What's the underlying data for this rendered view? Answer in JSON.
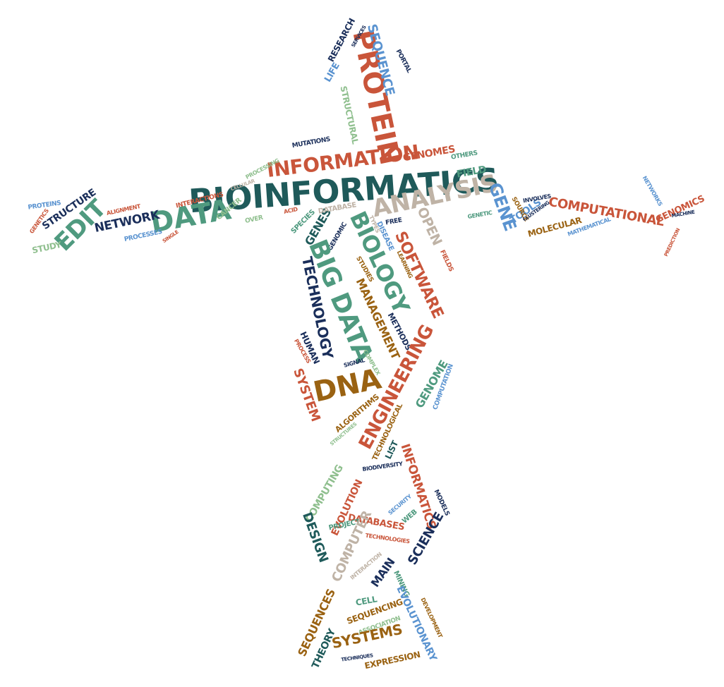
{
  "palette": {
    "red": "#c9553a",
    "teal": "#1f5a5a",
    "green": "#4f9a7f",
    "navy": "#1a2e5a",
    "brown": "#9a6212",
    "beige": "#bfb3a6",
    "sky": "#5a93d0",
    "sage": "#8fbf8e"
  },
  "words": [
    {
      "text": "BIOINFORMATICS",
      "color": "teal"
    },
    {
      "text": "PROTEIN",
      "color": "red"
    },
    {
      "text": "SEQUENCE",
      "color": "sky"
    },
    {
      "text": "RESEARCH",
      "color": "navy"
    },
    {
      "text": "LIFE",
      "color": "sky"
    },
    {
      "text": "SERVICES",
      "color": "navy"
    },
    {
      "text": "PORTAL",
      "color": "navy"
    },
    {
      "text": "STRUCTURAL",
      "color": "sage"
    },
    {
      "text": "INFORMATION",
      "color": "red"
    },
    {
      "text": "MUTATIONS",
      "color": "navy"
    },
    {
      "text": "GENOMES",
      "color": "red"
    },
    {
      "text": "OTHERS",
      "color": "green"
    },
    {
      "text": "FIELD",
      "color": "green"
    },
    {
      "text": "PROCESSING",
      "color": "sage"
    },
    {
      "text": "CELLULAR",
      "color": "beige"
    },
    {
      "text": "ANALYSIS",
      "color": "beige"
    },
    {
      "text": "DATA",
      "color": "green"
    },
    {
      "text": "NETWORK",
      "color": "navy"
    },
    {
      "text": "EDIT",
      "color": "green"
    },
    {
      "text": "STRUCTURE",
      "color": "navy"
    },
    {
      "text": "PROTEINS",
      "color": "sky"
    },
    {
      "text": "GENETICS",
      "color": "red"
    },
    {
      "text": "STUDY",
      "color": "sage"
    },
    {
      "text": "ALIGNMENT",
      "color": "red"
    },
    {
      "text": "INTERACTIONS",
      "color": "red"
    },
    {
      "text": "PROCESSES",
      "color": "sky"
    },
    {
      "text": "SINGLE",
      "color": "red"
    },
    {
      "text": "CANCER",
      "color": "sage"
    },
    {
      "text": "OVER",
      "color": "sage"
    },
    {
      "text": "ACID",
      "color": "red"
    },
    {
      "text": "SPECIES",
      "color": "green"
    },
    {
      "text": "GENES",
      "color": "teal"
    },
    {
      "text": "DATABASE",
      "color": "beige"
    },
    {
      "text": "GENOMIC",
      "color": "navy"
    },
    {
      "text": "TYPES",
      "color": "beige"
    },
    {
      "text": "DISEASE",
      "color": "sky"
    },
    {
      "text": "FREE",
      "color": "navy"
    },
    {
      "text": "OPEN",
      "color": "beige"
    },
    {
      "text": "BIOLOGY",
      "color": "green"
    },
    {
      "text": "SOFTWARE",
      "color": "red"
    },
    {
      "text": "BIG DATA",
      "color": "green"
    },
    {
      "text": "TECHNOLOGY",
      "color": "navy"
    },
    {
      "text": "STUDIES",
      "color": "brown"
    },
    {
      "text": "LEARNING",
      "color": "brown"
    },
    {
      "text": "FIELDS",
      "color": "red"
    },
    {
      "text": "MANAGEMENT",
      "color": "brown"
    },
    {
      "text": "METHODS",
      "color": "navy"
    },
    {
      "text": "HUMAN",
      "color": "navy"
    },
    {
      "text": "PROCESS",
      "color": "red"
    },
    {
      "text": "SIGNAL",
      "color": "navy"
    },
    {
      "text": "COMPLEX",
      "color": "sage"
    },
    {
      "text": "DNA",
      "color": "brown"
    },
    {
      "text": "SYSTEM",
      "color": "red"
    },
    {
      "text": "ENGINEERING",
      "color": "red"
    },
    {
      "text": "GENOME",
      "color": "green"
    },
    {
      "text": "COMPUTATION",
      "color": "sky"
    },
    {
      "text": "ALGORITHMS",
      "color": "brown"
    },
    {
      "text": "TECHNOLOGICAL",
      "color": "brown"
    },
    {
      "text": "STRUCTURES",
      "color": "sage"
    },
    {
      "text": "GENE",
      "color": "sky"
    },
    {
      "text": "TOOLS",
      "color": "sky"
    },
    {
      "text": "SOURCE",
      "color": "brown"
    },
    {
      "text": "INVOLVES",
      "color": "navy"
    },
    {
      "text": "CLUSTERING",
      "color": "navy"
    },
    {
      "text": "COMPUTATIONAL",
      "color": "red"
    },
    {
      "text": "MOLECULAR",
      "color": "brown"
    },
    {
      "text": "MATHEMATICAL",
      "color": "sky"
    },
    {
      "text": "GENETIC",
      "color": "green"
    },
    {
      "text": "GENOMICS",
      "color": "red"
    },
    {
      "text": "NETWORKS",
      "color": "sky"
    },
    {
      "text": "MACHINE",
      "color": "navy"
    },
    {
      "text": "PREDICTION",
      "color": "red"
    },
    {
      "text": "LIST",
      "color": "teal"
    },
    {
      "text": "BIODIVERSITY",
      "color": "navy"
    },
    {
      "text": "INFORMATICS",
      "color": "red"
    },
    {
      "text": "COMPUTING",
      "color": "sage"
    },
    {
      "text": "EVOLUTION",
      "color": "red"
    },
    {
      "text": "SECURITY",
      "color": "sky"
    },
    {
      "text": "MODELS",
      "color": "navy"
    },
    {
      "text": "DATABASES",
      "color": "red"
    },
    {
      "text": "WEB",
      "color": "green"
    },
    {
      "text": "PROJECT",
      "color": "green"
    },
    {
      "text": "DESIGN",
      "color": "teal"
    },
    {
      "text": "TECHNOLOGIES",
      "color": "red"
    },
    {
      "text": "COMPUTER",
      "color": "beige"
    },
    {
      "text": "SCIENCE",
      "color": "navy"
    },
    {
      "text": "INTERACTION",
      "color": "beige"
    },
    {
      "text": "MAIN",
      "color": "navy"
    },
    {
      "text": "MINING",
      "color": "green"
    },
    {
      "text": "CELL",
      "color": "green"
    },
    {
      "text": "SEQUENCING",
      "color": "brown"
    },
    {
      "text": "ASSOCIATION",
      "color": "sage"
    },
    {
      "text": "EVOLUTIONARY",
      "color": "sky"
    },
    {
      "text": "DEVELOPMENT",
      "color": "brown"
    },
    {
      "text": "SEQUENCES",
      "color": "brown"
    },
    {
      "text": "SYSTEMS",
      "color": "brown"
    },
    {
      "text": "THEORY",
      "color": "teal"
    },
    {
      "text": "TECHNIQUES",
      "color": "navy"
    },
    {
      "text": "EXPRESSION",
      "color": "brown"
    }
  ]
}
